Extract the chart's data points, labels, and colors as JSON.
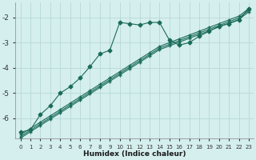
{
  "bg_color": "#d5eeee",
  "grid_color": "#b8d8d8",
  "line_color": "#1a6b5a",
  "xlabel": "Humidex (Indice chaleur)",
  "xlim": [
    -0.5,
    23.5
  ],
  "ylim": [
    -6.8,
    -1.4
  ],
  "yticks": [
    -6,
    -5,
    -4,
    -3,
    -2
  ],
  "xticks": [
    0,
    1,
    2,
    3,
    4,
    5,
    6,
    7,
    8,
    9,
    10,
    11,
    12,
    13,
    14,
    15,
    16,
    17,
    18,
    19,
    20,
    21,
    22,
    23
  ],
  "lines": [
    {
      "x": [
        0,
        1,
        2,
        3,
        4,
        5,
        6,
        7,
        8,
        9,
        10,
        11,
        12,
        13,
        14,
        15,
        16,
        17,
        18,
        19,
        20,
        21,
        22,
        23
      ],
      "y": [
        -6.55,
        -6.45,
        -5.85,
        -5.5,
        -5.0,
        -4.75,
        -4.4,
        -3.95,
        -3.45,
        -3.3,
        -2.2,
        -2.25,
        -2.3,
        -2.2,
        -2.2,
        -2.9,
        -3.1,
        -3.0,
        -2.75,
        -2.55,
        -2.35,
        -2.25,
        -2.1,
        -1.65
      ]
    },
    {
      "x": [
        0,
        1,
        2,
        3,
        4,
        5,
        6,
        7,
        8,
        9,
        10,
        11,
        12,
        13,
        14,
        15,
        16,
        17,
        18,
        19,
        20,
        21,
        22,
        23
      ],
      "y": [
        -6.65,
        -6.4,
        -6.15,
        -5.9,
        -5.65,
        -5.4,
        -5.15,
        -4.9,
        -4.65,
        -4.4,
        -4.15,
        -3.9,
        -3.65,
        -3.4,
        -3.15,
        -3.0,
        -2.85,
        -2.7,
        -2.55,
        -2.4,
        -2.25,
        -2.1,
        -1.95,
        -1.65
      ]
    },
    {
      "x": [
        0,
        1,
        2,
        3,
        4,
        5,
        6,
        7,
        8,
        9,
        10,
        11,
        12,
        13,
        14,
        15,
        16,
        17,
        18,
        19,
        20,
        21,
        22,
        23
      ],
      "y": [
        -6.72,
        -6.47,
        -6.22,
        -5.97,
        -5.72,
        -5.47,
        -5.22,
        -4.97,
        -4.72,
        -4.47,
        -4.22,
        -3.97,
        -3.72,
        -3.47,
        -3.22,
        -3.07,
        -2.92,
        -2.77,
        -2.62,
        -2.47,
        -2.32,
        -2.17,
        -2.02,
        -1.72
      ]
    },
    {
      "x": [
        0,
        1,
        2,
        3,
        4,
        5,
        6,
        7,
        8,
        9,
        10,
        11,
        12,
        13,
        14,
        15,
        16,
        17,
        18,
        19,
        20,
        21,
        22,
        23
      ],
      "y": [
        -6.78,
        -6.53,
        -6.28,
        -6.03,
        -5.78,
        -5.53,
        -5.28,
        -5.03,
        -4.78,
        -4.53,
        -4.28,
        -4.03,
        -3.78,
        -3.53,
        -3.28,
        -3.13,
        -2.98,
        -2.83,
        -2.68,
        -2.53,
        -2.38,
        -2.23,
        -2.08,
        -1.78
      ]
    }
  ]
}
